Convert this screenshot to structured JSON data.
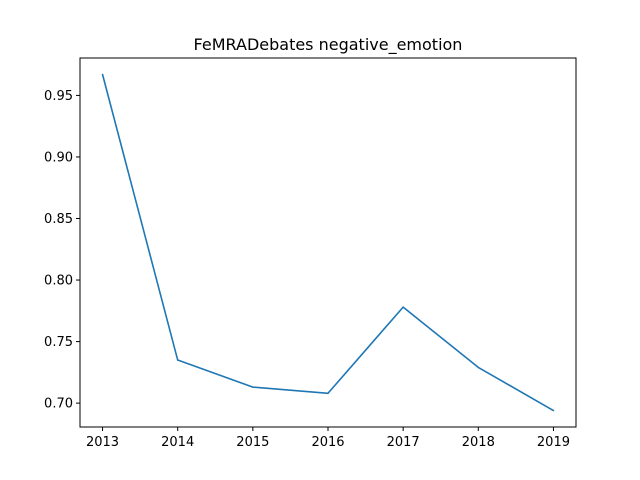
{
  "chart_data": {
    "type": "line",
    "title": "FeMRADebates negative_emotion",
    "xlabel": "",
    "ylabel": "",
    "x": [
      2013,
      2014,
      2015,
      2016,
      2017,
      2018,
      2019
    ],
    "series": [
      {
        "values": [
          0.967,
          0.735,
          0.713,
          0.708,
          0.778,
          0.729,
          0.694
        ],
        "color": "#1f77b4"
      }
    ],
    "xticks": [
      "2013",
      "2014",
      "2015",
      "2016",
      "2017",
      "2018",
      "2019"
    ],
    "yticks": [
      "0.70",
      "0.75",
      "0.80",
      "0.85",
      "0.90",
      "0.95"
    ],
    "xlim": [
      2012.7,
      2019.3
    ],
    "ylim": [
      0.6806,
      0.9804
    ],
    "grid": false,
    "legend": "none"
  }
}
